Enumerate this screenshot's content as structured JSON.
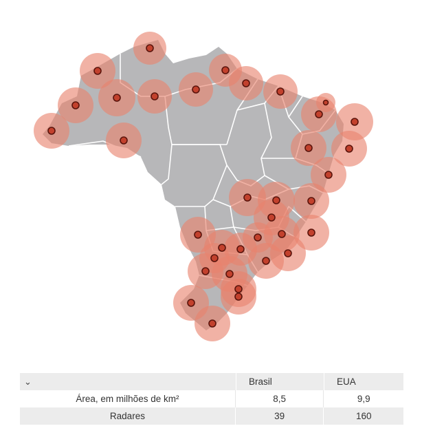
{
  "map": {
    "fill_color": "#b7b7b9",
    "border_color": "#ffffff",
    "coverage_color": "#e9836e",
    "radar_color": "#c2412d",
    "radar_count_shown": 39
  },
  "table": {
    "toggle_icon": "chevron-down-icon",
    "columns": [
      "",
      "Brasil",
      "EUA"
    ],
    "rows": [
      {
        "label": "Área, em milhões de km²",
        "brasil": "8,5",
        "eua": "9,9"
      },
      {
        "label": "Radares",
        "brasil": "39",
        "eua": "160"
      }
    ]
  }
}
